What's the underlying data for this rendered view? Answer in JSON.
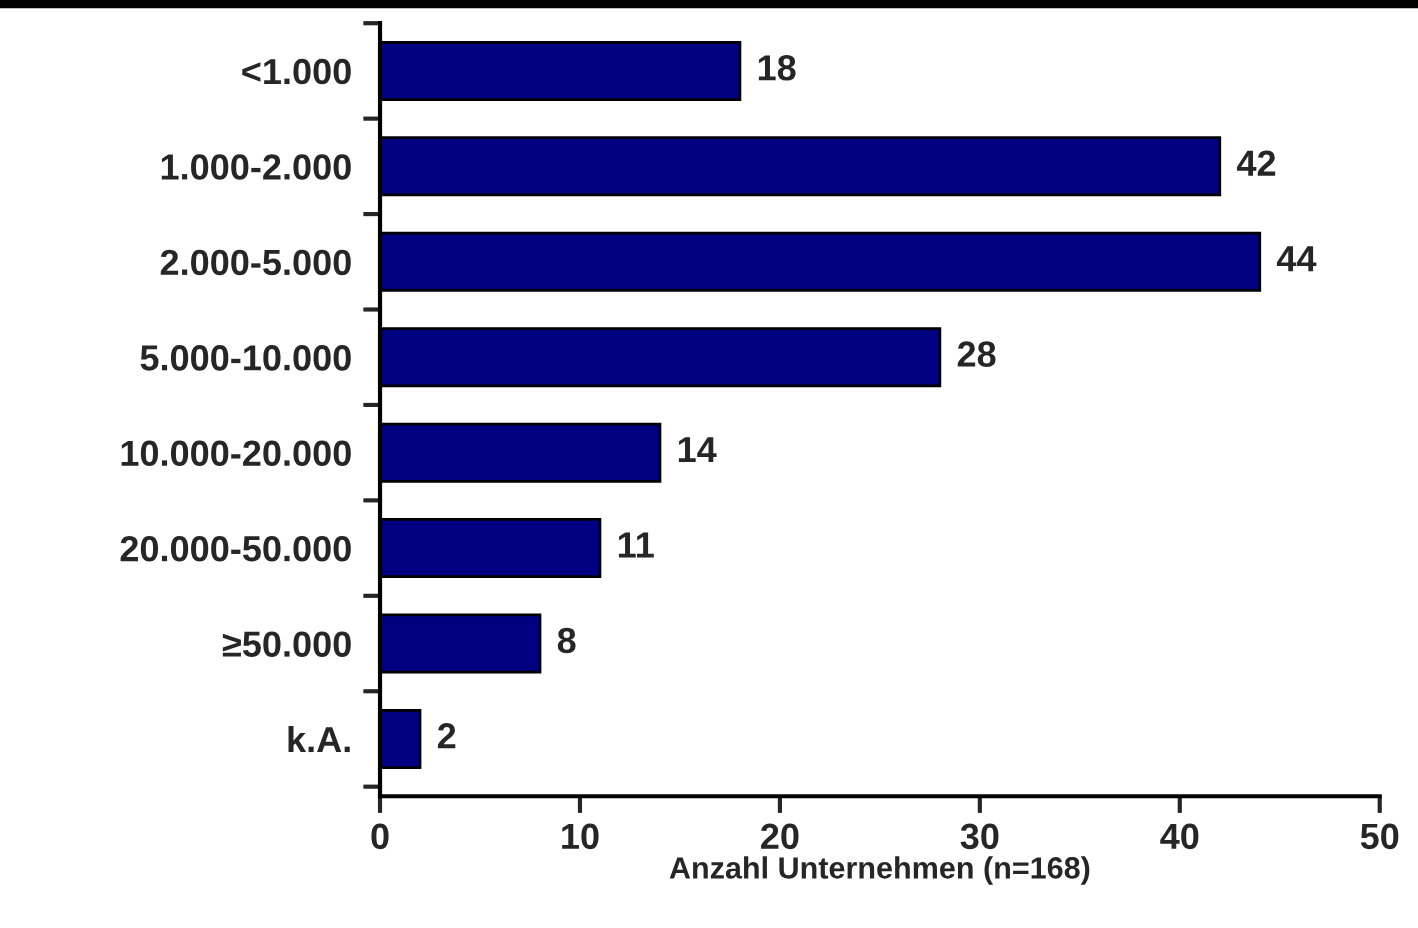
{
  "chart_data": {
    "type": "bar",
    "orientation": "horizontal",
    "categories": [
      "<1.000",
      "1.000-2.000",
      "2.000-5.000",
      "5.000-10.000",
      "10.000-20.000",
      "20.000-50.000",
      "≥50.000",
      "k.A."
    ],
    "values": [
      18,
      42,
      44,
      28,
      14,
      11,
      8,
      2
    ],
    "color": "#000080",
    "xlabel": "Anzahl Unternehmen (n=168)",
    "xlim": [
      0,
      50
    ],
    "xticks": [
      0,
      10,
      20,
      30,
      40,
      50
    ],
    "data_labels": true,
    "grid": false,
    "legend": false
  }
}
